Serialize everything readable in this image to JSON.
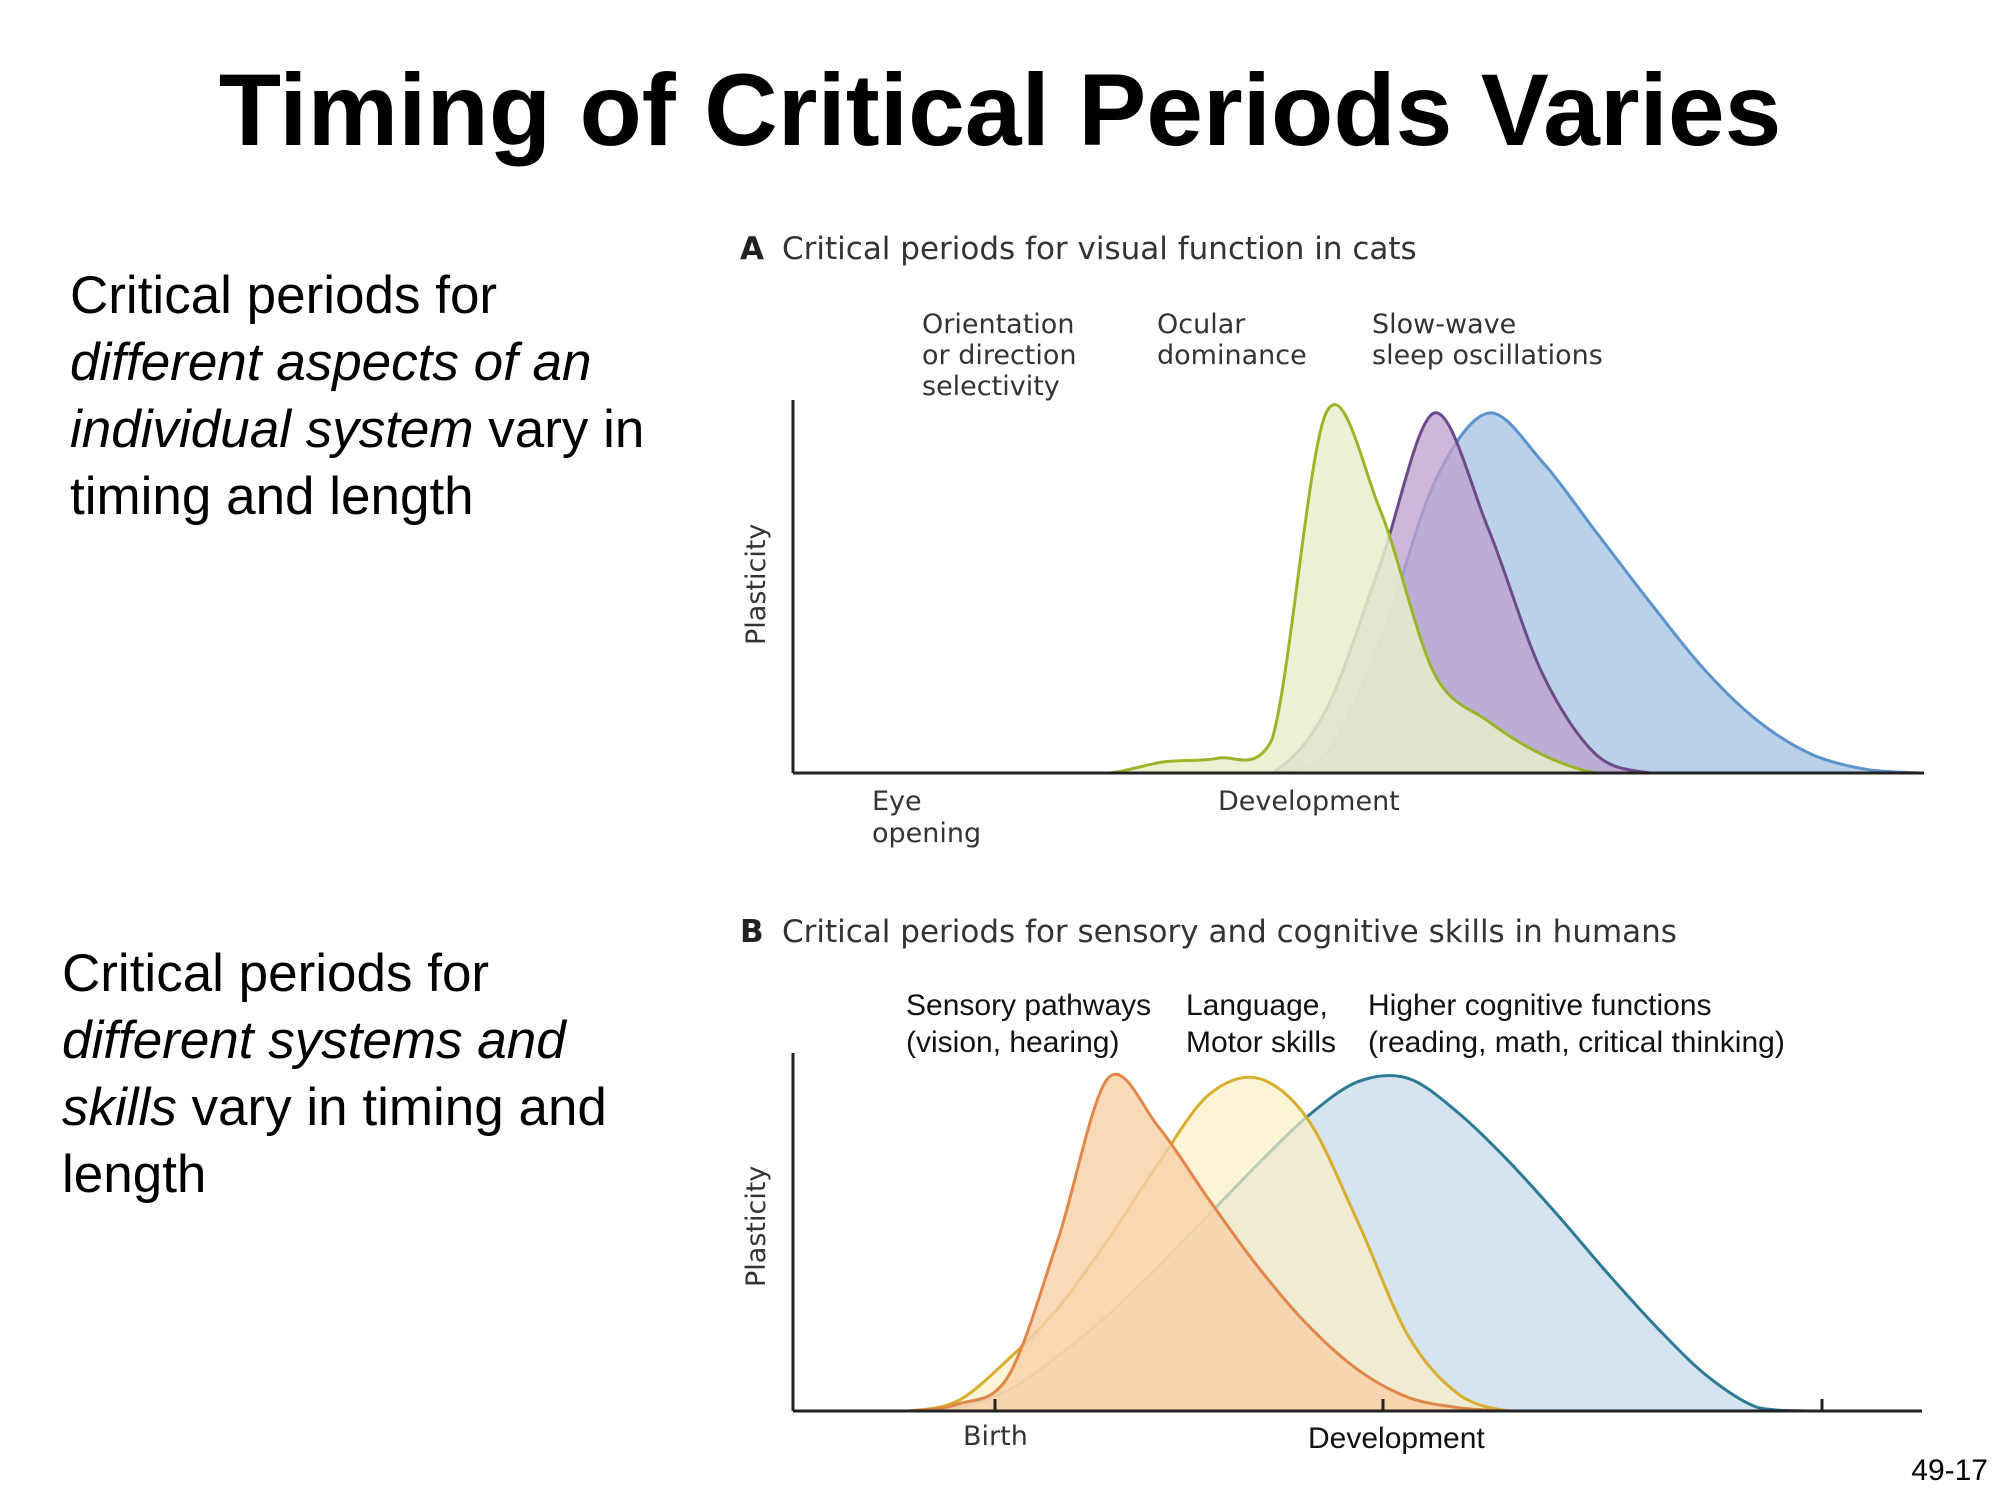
{
  "slide": {
    "title": "Timing of Critical Periods Varies",
    "number": "49-17"
  },
  "bullets": {
    "a": {
      "p1": "Critical periods for ",
      "em": "different aspects of an individual system",
      "p2": " vary in timing and length"
    },
    "b": {
      "p1": "Critical periods for ",
      "em": "different systems and skills",
      "p2": " vary in timing and length"
    }
  },
  "colors": {
    "a_green_stroke": "#9BB52A",
    "a_green_fill": "#E9EFCB",
    "a_purple_stroke": "#6E4A8C",
    "a_purple_fill": "#BE9FCC",
    "a_blue_stroke": "#5B93CC",
    "a_blue_fill": "#BBD1EA",
    "b_orange_stroke": "#E0874A",
    "b_orange_fill": "#F9CFA8",
    "b_yellow_stroke": "#D9AE30",
    "b_yellow_fill": "#F9EFC4",
    "b_teal_stroke": "#2C7A95",
    "b_teal_fill": "#D5E4EE",
    "axis": "#222222"
  },
  "chart_data": [
    {
      "type": "area",
      "letter": "A",
      "title": "Critical periods for visual function in cats",
      "xlabel": "Development",
      "ylabel": "Plasticity",
      "x_marks": [
        "Eye opening"
      ],
      "xlim": [
        0,
        100
      ],
      "ylim": [
        0,
        1
      ],
      "x": [
        0,
        5,
        10,
        15,
        20,
        25,
        30,
        35,
        40,
        45,
        50,
        55,
        60,
        65,
        70,
        75,
        80,
        85,
        90,
        95,
        100
      ],
      "series": [
        {
          "name": "Orientation or direction selectivity",
          "values": [
            0,
            0,
            0,
            0,
            0,
            0,
            0.03,
            0.04,
            0.09,
            0.97,
            0.71,
            0.27,
            0.14,
            0.05,
            0.0,
            0,
            0,
            0,
            0,
            0,
            0
          ]
        },
        {
          "name": "Ocular dominance",
          "values": [
            0,
            0,
            0,
            0,
            0,
            0,
            0.0,
            0.0,
            0.0,
            0.17,
            0.56,
            0.97,
            0.66,
            0.27,
            0.05,
            0.0,
            0,
            0,
            0,
            0,
            0
          ]
        },
        {
          "name": "Slow-wave sleep oscillations",
          "values": [
            0,
            0,
            0,
            0,
            0,
            0,
            0.0,
            0.0,
            0.0,
            0.05,
            0.35,
            0.78,
            0.97,
            0.84,
            0.65,
            0.46,
            0.28,
            0.14,
            0.05,
            0.01,
            0.0
          ]
        }
      ]
    },
    {
      "type": "area",
      "letter": "B",
      "title": "Critical periods for sensory and cognitive skills in humans",
      "xlabel": "Development",
      "ylabel": "Plasticity",
      "x_marks": [
        "Birth"
      ],
      "xlim": [
        0,
        100
      ],
      "ylim": [
        0,
        1
      ],
      "x": [
        0,
        5,
        10,
        15,
        20,
        25,
        30,
        35,
        40,
        45,
        50,
        55,
        60,
        65,
        70,
        75,
        80,
        85,
        90,
        95,
        100
      ],
      "series": [
        {
          "name": "Sensory pathways (vision, hearing)",
          "values": [
            0,
            0,
            0.02,
            0.1,
            0.5,
            0.97,
            0.83,
            0.62,
            0.42,
            0.25,
            0.12,
            0.04,
            0.01,
            0,
            0,
            0,
            0,
            0,
            0,
            0,
            0
          ]
        },
        {
          "name": "Language, Motor skills",
          "values": [
            0,
            0,
            0.03,
            0.15,
            0.3,
            0.5,
            0.72,
            0.92,
            0.97,
            0.85,
            0.55,
            0.22,
            0.05,
            0.0,
            0,
            0,
            0,
            0,
            0,
            0,
            0
          ]
        },
        {
          "name": "Higher cognitive functions (reading, math, critical thinking)",
          "values": [
            0,
            0,
            0.01,
            0.06,
            0.16,
            0.28,
            0.42,
            0.57,
            0.72,
            0.86,
            0.96,
            0.97,
            0.87,
            0.73,
            0.57,
            0.4,
            0.24,
            0.1,
            0.01,
            0,
            0
          ]
        }
      ]
    }
  ]
}
